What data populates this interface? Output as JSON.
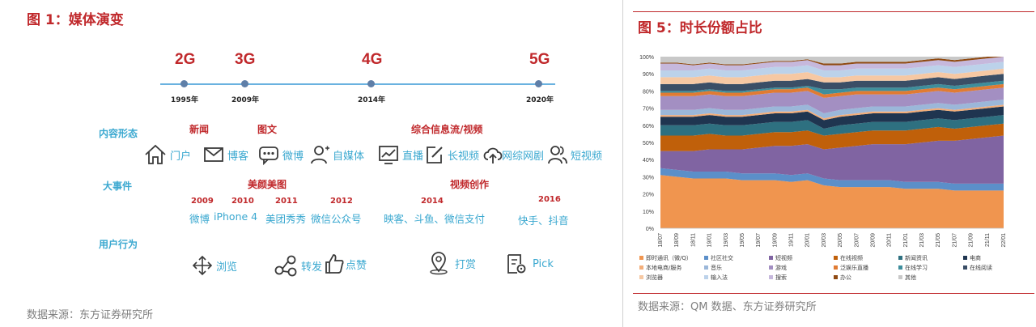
{
  "left_panel": {
    "title": "图 1：媒体演变",
    "source": "数据来源：东方证券研究所",
    "timeline": [
      {
        "gen": "2G",
        "year": "1995年"
      },
      {
        "gen": "3G",
        "year": "2009年"
      },
      {
        "gen": "4G",
        "year": "2014年"
      },
      {
        "gen": "5G",
        "year": "2020年"
      }
    ],
    "row_labels": {
      "content": "内容形态",
      "events": "大事件",
      "behavior": "用户行为"
    },
    "content_groups": [
      "新闻",
      "图文",
      "综合信息流/视频"
    ],
    "content_items": [
      {
        "icon": "home-icon",
        "label": "门户"
      },
      {
        "icon": "mail-icon",
        "label": "博客"
      },
      {
        "icon": "chat-bubble-icon",
        "label": "微博"
      },
      {
        "icon": "person-icon",
        "label": "自媒体"
      },
      {
        "icon": "monitor-chart-icon",
        "label": "直播"
      },
      {
        "icon": "edit-icon",
        "label": "长视频"
      },
      {
        "icon": "cloud-upload-icon",
        "label": "网综网剧"
      },
      {
        "icon": "people-icon",
        "label": "短视频"
      }
    ],
    "event_groups": [
      "美颜美图",
      "视频创作"
    ],
    "event_years": [
      "2009",
      "2010",
      "2011",
      "2012",
      "2014",
      "2016"
    ],
    "events": [
      "微博",
      "iPhone 4",
      "美团秀秀",
      "微信公众号",
      "映客、斗鱼、微信支付",
      "快手、抖音"
    ],
    "behavior_items": [
      {
        "icon": "move-arrows-icon",
        "label": "浏览"
      },
      {
        "icon": "share-icon",
        "label": "转发"
      },
      {
        "icon": "thumbs-up-icon",
        "label": "点赞"
      },
      {
        "icon": "location-pin-icon",
        "label": "打赏"
      },
      {
        "icon": "document-icon",
        "label": "Pick"
      }
    ]
  },
  "right_panel": {
    "title": "图 5：时长份额占比",
    "source": "数据来源：QM 数据、东方证券研究所"
  },
  "chart_data": {
    "type": "area",
    "stacked": true,
    "title": "图 5：时长份额占比",
    "ylim": [
      0,
      100
    ],
    "yticks": [
      "0%",
      "10%",
      "20%",
      "30%",
      "40%",
      "50%",
      "60%",
      "70%",
      "80%",
      "90%",
      "100%"
    ],
    "grid": false,
    "legend_position": "bottom",
    "x": [
      "18/07",
      "18/09",
      "18/11",
      "19/01",
      "19/03",
      "19/05",
      "19/07",
      "19/09",
      "19/11",
      "20/01",
      "20/03",
      "20/05",
      "20/07",
      "20/09",
      "20/11",
      "21/01",
      "21/03",
      "21/05",
      "21/07",
      "21/09",
      "21/11",
      "22/01"
    ],
    "series": [
      {
        "name": "即时通讯（微/Q）",
        "color": "#f0954f",
        "values": [
          31,
          30,
          29,
          29,
          29,
          28,
          28,
          28,
          27,
          28,
          25,
          24,
          24,
          24,
          24,
          23,
          23,
          23,
          22,
          22,
          22,
          22
        ]
      },
      {
        "name": "社区社交",
        "color": "#5b8fc9",
        "values": [
          4,
          4,
          4,
          4,
          4,
          4,
          4,
          4,
          4,
          4,
          4,
          4,
          4,
          4,
          4,
          4,
          4,
          4,
          4,
          4,
          4,
          4
        ]
      },
      {
        "name": "短视频",
        "color": "#8064a2",
        "values": [
          10,
          11,
          12,
          13,
          13,
          14,
          15,
          16,
          17,
          17,
          17,
          19,
          20,
          21,
          21,
          22,
          23,
          24,
          25,
          26,
          27,
          28
        ]
      },
      {
        "name": "在线视频",
        "color": "#c0600a",
        "values": [
          9,
          9,
          9,
          9,
          8,
          8,
          8,
          8,
          8,
          8,
          8,
          8,
          8,
          8,
          8,
          8,
          8,
          8,
          7,
          7,
          7,
          7
        ]
      },
      {
        "name": "新闻资讯",
        "color": "#2e7080",
        "values": [
          6,
          6,
          6,
          6,
          6,
          6,
          6,
          6,
          6,
          6,
          4,
          5,
          5,
          5,
          5,
          5,
          5,
          5,
          5,
          5,
          5,
          5
        ]
      },
      {
        "name": "电商",
        "color": "#1f3550",
        "values": [
          5,
          5,
          5,
          5,
          5,
          5,
          5,
          5,
          5,
          5,
          5,
          5,
          5,
          5,
          5,
          5,
          5,
          5,
          5,
          5,
          5,
          5
        ]
      },
      {
        "name": "本地电商/服务",
        "color": "#f3ae7a",
        "values": [
          1,
          1,
          1,
          1,
          1,
          1,
          1,
          1,
          1,
          1,
          1,
          1,
          1,
          1,
          1,
          1,
          1,
          1,
          1,
          1,
          1,
          1
        ]
      },
      {
        "name": "音乐",
        "color": "#9bb7d9",
        "values": [
          3,
          3,
          3,
          3,
          3,
          3,
          3,
          3,
          3,
          3,
          3,
          3,
          3,
          3,
          3,
          3,
          3,
          3,
          3,
          3,
          3,
          3
        ]
      },
      {
        "name": "游戏",
        "color": "#a38fc2",
        "values": [
          8,
          8,
          8,
          8,
          8,
          8,
          8,
          8,
          8,
          8,
          9,
          8,
          8,
          7,
          7,
          7,
          7,
          7,
          7,
          7,
          7,
          7
        ]
      },
      {
        "name": "泛娱乐直播",
        "color": "#e07b33",
        "values": [
          2,
          2,
          2,
          2,
          2,
          2,
          2,
          2,
          2,
          2,
          2,
          2,
          2,
          2,
          2,
          2,
          2,
          2,
          2,
          2,
          2,
          2
        ]
      },
      {
        "name": "在线学习",
        "color": "#3e8e9c",
        "values": [
          1,
          1,
          1,
          1,
          1,
          1,
          1,
          1,
          1,
          1,
          3,
          2,
          2,
          2,
          2,
          2,
          2,
          2,
          2,
          2,
          2,
          2
        ]
      },
      {
        "name": "在线阅读",
        "color": "#3a4e66",
        "values": [
          4,
          4,
          4,
          4,
          4,
          4,
          4,
          4,
          4,
          4,
          4,
          4,
          4,
          4,
          4,
          4,
          4,
          4,
          4,
          4,
          4,
          4
        ]
      },
      {
        "name": "浏览器",
        "color": "#f6c8a3",
        "values": [
          4,
          4,
          4,
          4,
          4,
          4,
          4,
          4,
          4,
          4,
          3,
          3,
          3,
          3,
          3,
          3,
          3,
          3,
          3,
          3,
          3,
          3
        ]
      },
      {
        "name": "输入法",
        "color": "#bcd2ea",
        "values": [
          4,
          4,
          4,
          4,
          4,
          4,
          4,
          4,
          4,
          4,
          4,
          4,
          4,
          4,
          4,
          4,
          4,
          4,
          4,
          4,
          4,
          4
        ]
      },
      {
        "name": "搜索",
        "color": "#c6b8dc",
        "values": [
          4,
          4,
          3,
          3,
          3,
          3,
          3,
          3,
          3,
          3,
          3,
          3,
          3,
          3,
          3,
          3,
          3,
          3,
          3,
          3,
          3,
          3
        ]
      },
      {
        "name": "办公",
        "color": "#8f4a12",
        "values": [
          0.5,
          0.5,
          0.5,
          0.5,
          0.5,
          0.5,
          0.5,
          0.5,
          0.5,
          0.5,
          1,
          1,
          1,
          1,
          1,
          1,
          1,
          1,
          1,
          1,
          1,
          1
        ]
      },
      {
        "name": "其他",
        "color": "#c8c8c8",
        "values": [
          3.5,
          3.5,
          4.5,
          3.5,
          4.5,
          4.5,
          3.5,
          2.5,
          2.5,
          1.5,
          5,
          6,
          5,
          5,
          5,
          4,
          3,
          2,
          2,
          1,
          0,
          -1
        ]
      }
    ]
  }
}
